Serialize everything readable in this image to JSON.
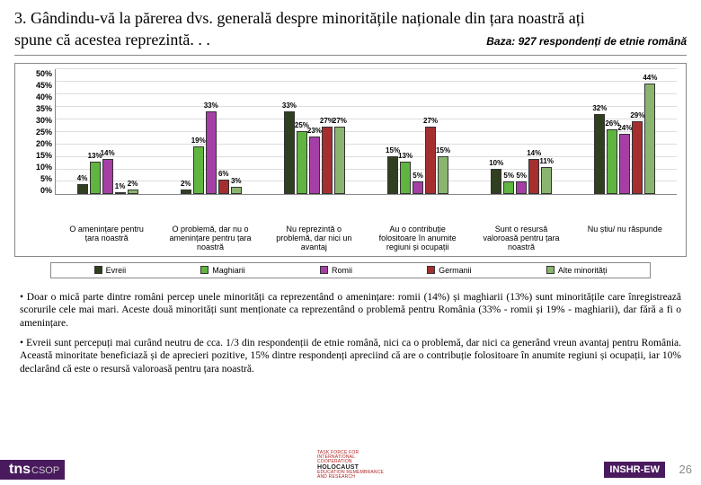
{
  "title": "3. Gândindu-vă la părerea dvs. generală despre minoritățile naționale din țara noastră ați",
  "subtitle": "spune că acestea reprezintă. . .",
  "baza": "Baza: 927 respondenți de etnie română",
  "chart": {
    "type": "bar-grouped",
    "ymax": 50,
    "ytick_step": 5,
    "yticks": [
      "50%",
      "45%",
      "40%",
      "35%",
      "30%",
      "25%",
      "20%",
      "15%",
      "10%",
      "5%",
      "0%"
    ],
    "series": [
      {
        "name": "Evreii",
        "color": "#2f3f1f"
      },
      {
        "name": "Maghiarii",
        "color": "#5fb53f"
      },
      {
        "name": "Romii",
        "color": "#a53fa5"
      },
      {
        "name": "Germanii",
        "color": "#a52f2f"
      },
      {
        "name": "Alte minorități",
        "color": "#8ab56f"
      }
    ],
    "categories": [
      "O amenințare pentru țara noastră",
      "O problemă, dar nu o amenințare pentru țara noastră",
      "Nu reprezintă o problemă, dar nici un avantaj",
      "Au o contribuție folositoare în anumite regiuni și ocupații",
      "Sunt o resursă valoroasă pentru țara noastră",
      "Nu știu/ nu răspunde"
    ],
    "values": [
      [
        4,
        13,
        14,
        1,
        2
      ],
      [
        2,
        19,
        33,
        6,
        3
      ],
      [
        33,
        25,
        23,
        27,
        27
      ],
      [
        15,
        13,
        5,
        27,
        15
      ],
      [
        10,
        5,
        5,
        14,
        11
      ],
      [
        32,
        26,
        24,
        29,
        44
      ]
    ],
    "labels": [
      [
        "4%",
        "13%",
        "14%",
        "1%",
        "2%"
      ],
      [
        "2%",
        "19%",
        "33%",
        "6%",
        "3%"
      ],
      [
        "33%",
        "25%",
        "23%",
        "27%",
        "27%"
      ],
      [
        "15%",
        "13%",
        "5%",
        "27%",
        "15%"
      ],
      [
        "10%",
        "5%",
        "5%",
        "14%",
        "11%"
      ],
      [
        "32%",
        "26%",
        "24%",
        "29%",
        "44%"
      ]
    ]
  },
  "bullets": [
    "•  Doar o mică parte dintre români percep unele minorități ca reprezentând o amenințare: romii (14%) și maghiarii (13%) sunt minoritățile care înregistrează scorurile cele mai mari. Aceste două minorități sunt menționate ca reprezentând o problemă pentru România (33% - romii și 19% - maghiarii), dar fără a fi o amenințare.",
    "•  Evreii sunt percepuți mai curând neutru de cca. 1/3 din respondenții de etnie română, nici ca o problemă, dar nici ca generând vreun avantaj pentru România. Această minoritate beneficiază și de aprecieri pozitive, 15% dintre respondenți apreciind  că are o contribuție folositoare în anumite regiuni și ocupații, iar 10% declarând că este o resursă valoroasă pentru țara noastră."
  ],
  "footer": {
    "tns": "tns",
    "csop": "CSOP",
    "inshr": "INSHR-EW",
    "page": "26",
    "logo_l1": "TASK FORCE FOR",
    "logo_l2": "INTERNATIONAL",
    "logo_l3": "COOPERATION",
    "logo_hw": "HOLOCAUST",
    "logo_l4": "EDUCATION REMEMBRANCE",
    "logo_l5": "AND RESEARCH"
  }
}
